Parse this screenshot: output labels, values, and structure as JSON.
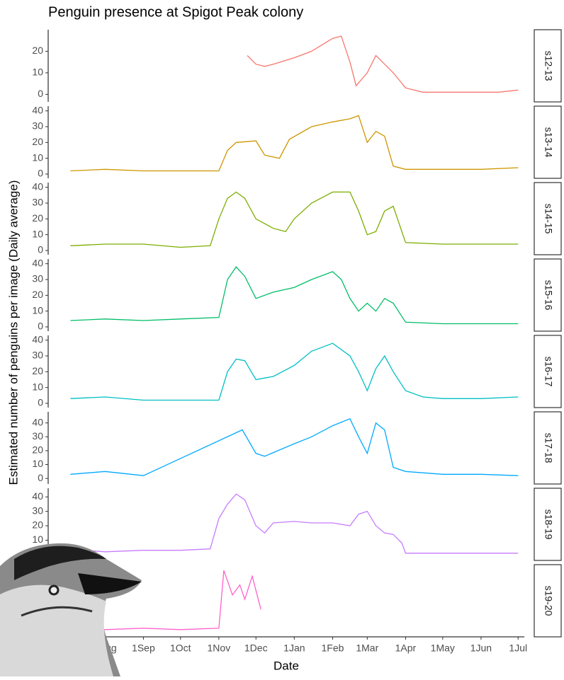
{
  "chart_data": {
    "type": "line",
    "title": "Penguin presence at Spigot Peak colony",
    "xlabel": "Date",
    "ylabel": "Estimated number of penguins per image (Daily average)",
    "xlim": [
      "16Jun",
      "6Jul"
    ],
    "xticks": [
      "1Aug",
      "1Sep",
      "1Oct",
      "1Nov",
      "1Dec",
      "1Jan",
      "1Feb",
      "1Mar",
      "1Apr",
      "1May",
      "1Jun",
      "1Jul"
    ],
    "facets": [
      {
        "name": "s12-13",
        "color": "#F8766D",
        "ylim": [
          -3.5,
          30
        ],
        "yticks": [
          0,
          10,
          20
        ],
        "x": [
          "24Nov",
          "1Dec",
          "8Dec",
          "15Dec",
          "1Jan",
          "15Jan",
          "1Feb",
          "8Feb",
          "15Feb",
          "20Feb",
          "1Mar",
          "8Mar",
          "15Mar",
          "22Mar",
          "1Apr",
          "15Apr",
          "1May",
          "15May",
          "1Jun",
          "15Jun",
          "1Jul"
        ],
        "values": [
          18,
          14,
          13,
          14,
          17,
          20,
          26,
          27,
          15,
          4,
          10,
          18,
          14,
          10,
          3,
          1,
          1,
          1,
          1,
          1,
          2
        ]
      },
      {
        "name": "s13-14",
        "color": "#CD9600",
        "ylim": [
          -2.7,
          43
        ],
        "yticks": [
          0,
          10,
          20,
          30,
          40
        ],
        "x": [
          "4Jul",
          "1Aug",
          "1Sep",
          "1Oct",
          "1Nov",
          "8Nov",
          "15Nov",
          "1Dec",
          "8Dec",
          "20Dec",
          "28Dec",
          "15Jan",
          "1Feb",
          "15Feb",
          "22Feb",
          "1Mar",
          "8Mar",
          "15Mar",
          "22Mar",
          "1Apr",
          "1May",
          "1Jun",
          "1Jul"
        ],
        "values": [
          2,
          3,
          2,
          2,
          2,
          15,
          20,
          21,
          12,
          10,
          22,
          30,
          33,
          35,
          37,
          20,
          27,
          24,
          5,
          3,
          3,
          3,
          4
        ]
      },
      {
        "name": "s14-15",
        "color": "#7CAE00",
        "ylim": [
          -2.7,
          43
        ],
        "yticks": [
          0,
          10,
          20,
          30,
          40
        ],
        "x": [
          "4Jul",
          "1Aug",
          "1Sep",
          "1Oct",
          "25Oct",
          "1Nov",
          "8Nov",
          "15Nov",
          "22Nov",
          "1Dec",
          "15Dec",
          "25Dec",
          "1Jan",
          "15Jan",
          "1Feb",
          "15Feb",
          "22Feb",
          "1Mar",
          "8Mar",
          "15Mar",
          "22Mar",
          "1Apr",
          "1May",
          "1Jun",
          "1Jul"
        ],
        "values": [
          3,
          4,
          4,
          2,
          3,
          20,
          33,
          37,
          33,
          20,
          14,
          12,
          20,
          30,
          37,
          37,
          25,
          10,
          12,
          25,
          28,
          5,
          4,
          4,
          4
        ]
      },
      {
        "name": "s15-16",
        "color": "#00BE67",
        "ylim": [
          -2.7,
          43
        ],
        "yticks": [
          0,
          10,
          20,
          30,
          40
        ],
        "x": [
          "4Jul",
          "1Aug",
          "1Sep",
          "1Oct",
          "1Nov",
          "8Nov",
          "15Nov",
          "22Nov",
          "1Dec",
          "15Dec",
          "1Jan",
          "15Jan",
          "1Feb",
          "8Feb",
          "15Feb",
          "22Feb",
          "1Mar",
          "8Mar",
          "15Mar",
          "22Mar",
          "1Apr",
          "1May",
          "1Jun",
          "1Jul"
        ],
        "values": [
          4,
          5,
          4,
          5,
          6,
          30,
          38,
          32,
          18,
          22,
          25,
          30,
          35,
          30,
          18,
          10,
          15,
          10,
          18,
          15,
          3,
          2,
          2,
          2
        ]
      },
      {
        "name": "s16-17",
        "color": "#00BFC4",
        "ylim": [
          -2.7,
          43
        ],
        "yticks": [
          0,
          10,
          20,
          30,
          40
        ],
        "x": [
          "4Jul",
          "1Aug",
          "1Sep",
          "1Oct",
          "1Nov",
          "8Nov",
          "15Nov",
          "22Nov",
          "1Dec",
          "15Dec",
          "1Jan",
          "15Jan",
          "1Feb",
          "15Feb",
          "22Feb",
          "1Mar",
          "8Mar",
          "15Mar",
          "22Mar",
          "1Apr",
          "15Apr",
          "1May",
          "1Jun",
          "1Jul"
        ],
        "values": [
          3,
          4,
          2,
          2,
          2,
          20,
          28,
          27,
          15,
          17,
          24,
          33,
          38,
          30,
          20,
          8,
          22,
          30,
          20,
          8,
          4,
          3,
          3,
          4
        ]
      },
      {
        "name": "s17-18",
        "color": "#00A9FF",
        "ylim": [
          -4,
          48
        ],
        "yticks": [
          0,
          10,
          20,
          30,
          40
        ],
        "x": [
          "4Jul",
          "1Aug",
          "1Sep",
          "20Nov",
          "1Dec",
          "8Dec",
          "1Jan",
          "15Jan",
          "1Feb",
          "15Feb",
          "22Feb",
          "1Mar",
          "8Mar",
          "15Mar",
          "22Mar",
          "1Apr",
          "1May",
          "1Jun",
          "1Jul"
        ],
        "values": [
          3,
          5,
          2,
          35,
          18,
          16,
          25,
          30,
          38,
          43,
          30,
          18,
          40,
          35,
          8,
          5,
          3,
          3,
          2
        ]
      },
      {
        "name": "s18-19",
        "color": "#C77CFF",
        "ylim": [
          -4,
          46
        ],
        "yticks": [
          10,
          20,
          30,
          40
        ],
        "x": [
          "4Jul",
          "15Jul",
          "1Aug",
          "1Sep",
          "1Oct",
          "25Oct",
          "1Nov",
          "8Nov",
          "15Nov",
          "22Nov",
          "1Dec",
          "8Dec",
          "15Dec",
          "1Jan",
          "15Jan",
          "1Feb",
          "15Feb",
          "22Feb",
          "1Mar",
          "8Mar",
          "15Mar",
          "22Mar",
          "29Mar",
          "1Apr",
          "1May",
          "1Jun",
          "1Jul"
        ],
        "values": [
          5,
          3,
          2,
          3,
          3,
          4,
          25,
          35,
          42,
          38,
          20,
          15,
          22,
          23,
          22,
          22,
          20,
          28,
          30,
          20,
          15,
          14,
          8,
          1,
          1,
          1,
          1
        ]
      },
      {
        "name": "s19-20",
        "color": "#FF61CC",
        "ylim": [
          -4,
          46
        ],
        "yticks": [],
        "x": [
          "4Jul",
          "1Aug",
          "1Sep",
          "1Oct",
          "1Nov",
          "5Nov",
          "12Nov",
          "18Nov",
          "22Nov",
          "28Nov",
          "5Dec"
        ],
        "values": [
          1,
          1,
          2,
          1,
          2,
          42,
          25,
          32,
          22,
          38,
          15
        ]
      }
    ]
  }
}
